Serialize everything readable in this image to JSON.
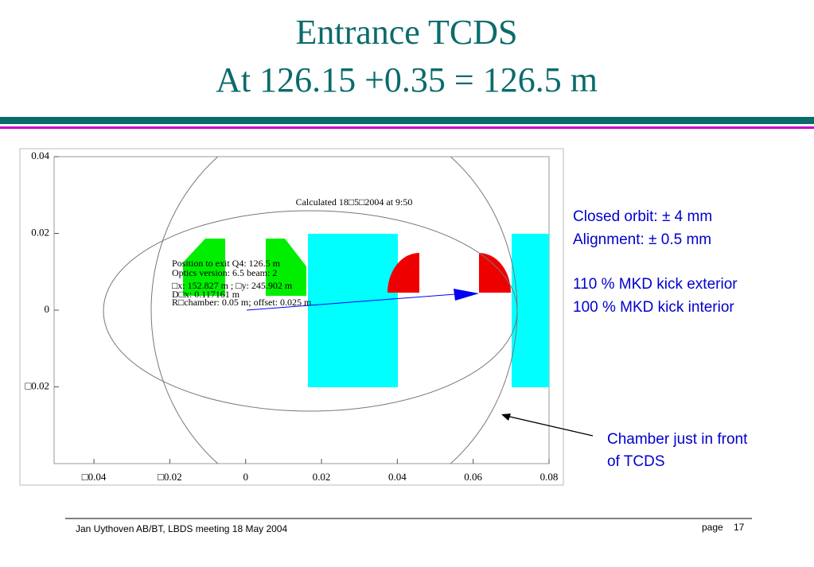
{
  "title": [
    "Entrance TCDS",
    "At 126.15 +0.35 = 126.5 m"
  ],
  "chart_data": {
    "type": "plot",
    "xlim": [
      -0.0505,
      0.08
    ],
    "ylim": [
      -0.04,
      0.04
    ],
    "xticks": [
      {
        "value": -0.04,
        "label": "□0.04"
      },
      {
        "value": -0.02,
        "label": "□0.02"
      },
      0,
      0.02,
      0.04,
      0.06,
      0.08
    ],
    "yticks": [
      {
        "value": -0.02,
        "label": "□0.02"
      },
      0,
      0.02,
      0.04
    ],
    "annotations": [
      "Calculated 18□5□2004 at 9:50",
      "Position to exit Q4:  126.5 m",
      "Optics  version:  6.5   beam: 2",
      "□x:  152.827 m ;  □y:  245.902 m",
      "D□x:  0.117161 m",
      "R□chamber:  0.05 m; offset: 0.025 m"
    ]
  },
  "notes": [
    "Closed orbit: ± 4 mm",
    "Alignment: ± 0.5 mm",
    "110 % MKD kick exterior",
    "100 % MKD kick interior"
  ],
  "callout": [
    "Chamber just in front",
    "of TCDS"
  ],
  "footer": {
    "author": "Jan Uythoven AB/BT, LBDS meeting 18 May 2004",
    "page_label": "page",
    "page": "17"
  }
}
